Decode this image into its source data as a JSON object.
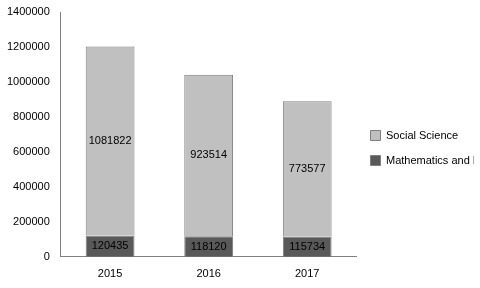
{
  "chart_data": {
    "type": "bar",
    "categories": [
      "2015",
      "2016",
      "2017"
    ],
    "series": [
      {
        "name": "Mathematics and Nature Science",
        "color": "#595959",
        "values": [
          120435,
          118120,
          115734
        ]
      },
      {
        "name": "Social Science",
        "color": "#c0c0c0",
        "values": [
          1081822,
          923514,
          773577
        ]
      }
    ],
    "ylim": [
      0,
      1400000
    ],
    "yticks": [
      0,
      200000,
      400000,
      600000,
      800000,
      1000000,
      1200000,
      1400000
    ],
    "stacked": true,
    "grid": false,
    "legend": "right",
    "data_labels": true
  }
}
